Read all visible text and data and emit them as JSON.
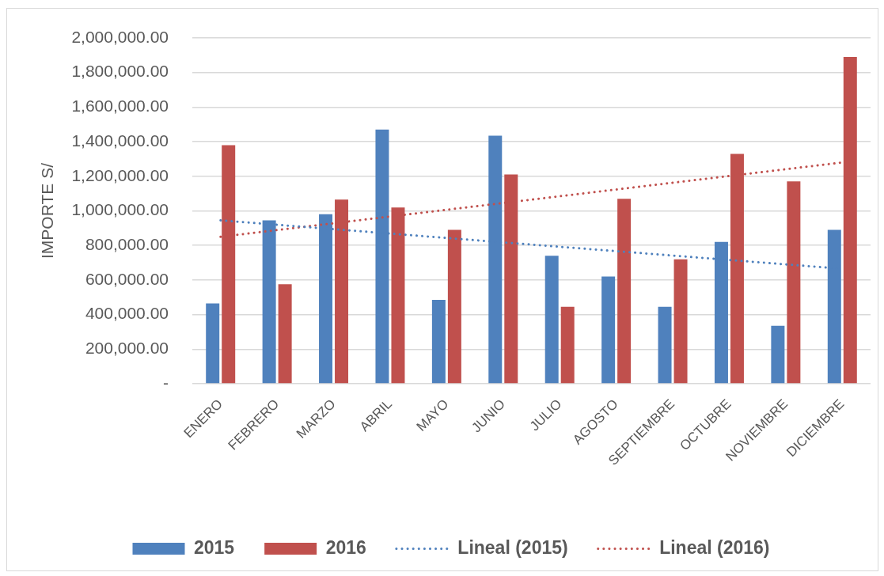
{
  "chart_data": {
    "type": "bar",
    "ylabel": "IMPORTE S/",
    "categories": [
      "ENERO",
      "FEBRERO",
      "MARZO",
      "ABRIL",
      "MAYO",
      "JUNIO",
      "JULIO",
      "AGOSTO",
      "SEPTIEMBRE",
      "OCTUBRE",
      "NOVIEMBRE",
      "DICIEMBRE"
    ],
    "series": [
      {
        "name": "2015",
        "color": "#4f81bd",
        "values": [
          465000,
          945000,
          980000,
          1470000,
          485000,
          1435000,
          740000,
          620000,
          445000,
          820000,
          335000,
          890000
        ]
      },
      {
        "name": "2016",
        "color": "#c0504d",
        "values": [
          1380000,
          575000,
          1065000,
          1020000,
          890000,
          1210000,
          445000,
          1070000,
          720000,
          1330000,
          1170000,
          1890000
        ]
      },
      {
        "name": "Lineal (2015)",
        "type": "line",
        "color": "#4f81bd",
        "x": [
          "ENERO",
          "DICIEMBRE"
        ],
        "values": [
          945000,
          665000
        ],
        "line_style": "dotted",
        "marker": "none"
      },
      {
        "name": "Lineal (2016)",
        "type": "line",
        "color": "#c0504d",
        "x": [
          "ENERO",
          "DICIEMBRE"
        ],
        "values": [
          850000,
          1280000
        ],
        "line_style": "dotted",
        "marker": "none"
      }
    ],
    "ylim": [
      0,
      2000000
    ],
    "yticks": [
      {
        "value": 0,
        "label": "-"
      },
      {
        "value": 200000,
        "label": "200,000.00"
      },
      {
        "value": 400000,
        "label": "400,000.00"
      },
      {
        "value": 600000,
        "label": "600,000.00"
      },
      {
        "value": 800000,
        "label": "800,000.00"
      },
      {
        "value": 1000000,
        "label": "1,000,000.00"
      },
      {
        "value": 1200000,
        "label": "1,200,000.00"
      },
      {
        "value": 1400000,
        "label": "1,400,000.00"
      },
      {
        "value": 1600000,
        "label": "1,600,000.00"
      },
      {
        "value": 1800000,
        "label": "1,800,000.00"
      },
      {
        "value": 2000000,
        "label": "2,000,000.00"
      }
    ],
    "grid": "y",
    "legend": "bottom"
  }
}
